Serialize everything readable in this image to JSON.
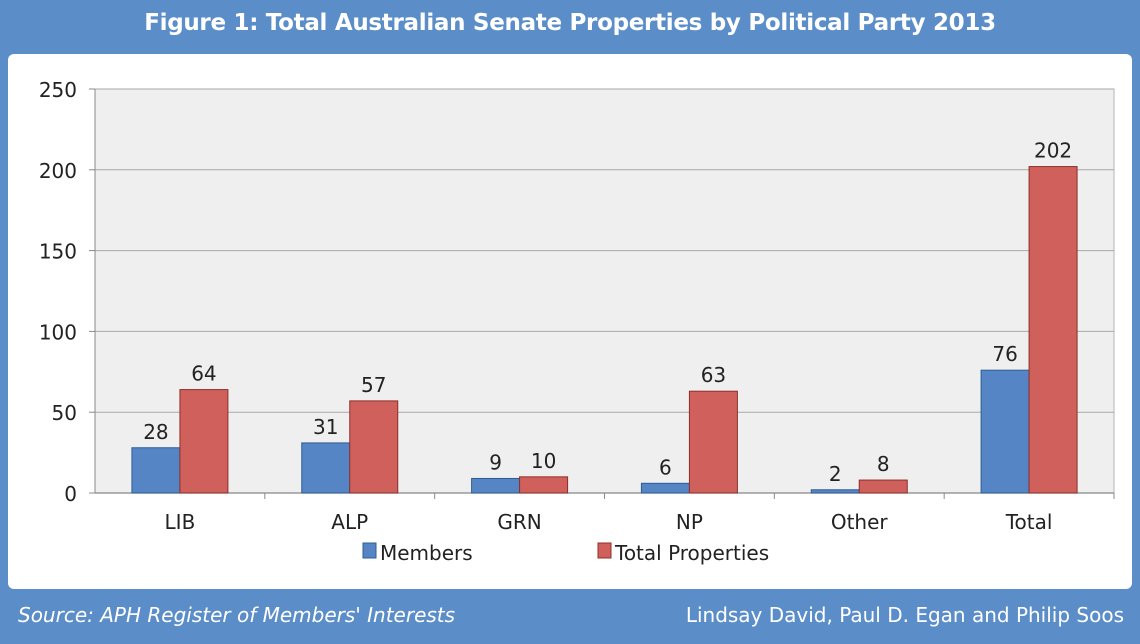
{
  "header": {
    "title": "Figure 1: Total Australian Senate Properties by Political Party 2013"
  },
  "footer": {
    "source": "Source: APH Register of Members' Interests",
    "authors": "Lindsay David, Paul D. Egan and Philip Soos"
  },
  "colors": {
    "background": "#5b8ec8",
    "members": "#5585c5",
    "properties": "#d0605b",
    "plot_bg": "#efefef"
  },
  "chart_data": {
    "type": "bar",
    "title": "Figure 1: Total Australian Senate Properties by Political Party 2013",
    "categories": [
      "LIB",
      "ALP",
      "GRN",
      "NP",
      "Other",
      "Total"
    ],
    "series": [
      {
        "name": "Members",
        "values": [
          28,
          31,
          9,
          6,
          2,
          76
        ]
      },
      {
        "name": "Total Properties",
        "values": [
          64,
          57,
          10,
          63,
          8,
          202
        ]
      }
    ],
    "xlabel": "",
    "ylabel": "",
    "ylim": [
      0,
      250
    ],
    "yticks": [
      0,
      50,
      100,
      150,
      200,
      250
    ],
    "grid": true,
    "legend": "bottom"
  }
}
